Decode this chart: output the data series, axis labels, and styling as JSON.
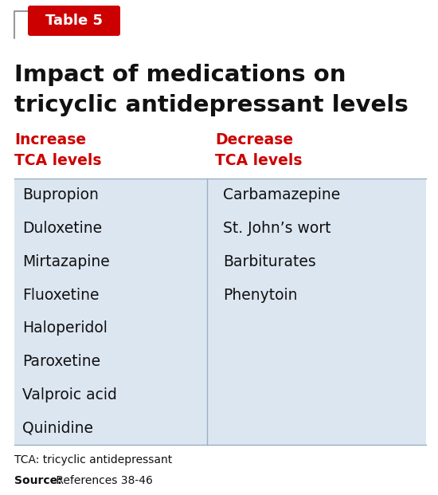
{
  "table_label": "Table 5",
  "title_line1": "Impact of medications on",
  "title_line2": "tricyclic antidepressant levels",
  "col1_header_line1": "Increase",
  "col1_header_line2": "TCA levels",
  "col2_header_line1": "Decrease",
  "col2_header_line2": "TCA levels",
  "col1_items": [
    "Bupropion",
    "Duloxetine",
    "Mirtazapine",
    "Fluoxetine",
    "Haloperidol",
    "Paroxetine",
    "Valproic acid",
    "Quinidine"
  ],
  "col2_items": [
    "Carbamazepine",
    "St. John’s wort",
    "Barbiturates",
    "Phenytoin"
  ],
  "footnote1": "TCA: tricyclic antidepressant",
  "footnote2_bold": "Source:",
  "footnote2_rest": " References 38-46",
  "bg_color": "#ffffff",
  "table_bg": "#dce6f1",
  "header_color": "#cc0000",
  "title_color": "#111111",
  "item_color": "#111111",
  "table_label_bg": "#cc0000",
  "table_label_color": "#ffffff",
  "divider_color": "#9aafc5",
  "footnote_color": "#111111"
}
